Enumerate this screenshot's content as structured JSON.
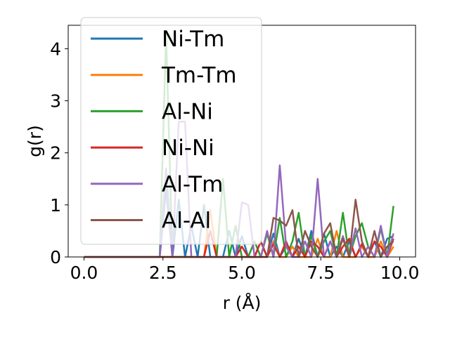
{
  "chart_data": {
    "type": "line",
    "title": "",
    "xlabel": "r (Å)",
    "ylabel": "g(r)",
    "xlim": [
      -0.5,
      10.5
    ],
    "ylim": [
      0,
      4.45
    ],
    "x_ticks": [
      "0.0",
      "2.5",
      "5.0",
      "7.5",
      "10.0"
    ],
    "y_ticks": [
      "0",
      "1",
      "2",
      "3",
      "4"
    ],
    "grid": false,
    "legend_position": "upper-left",
    "x": [
      0.0,
      0.2,
      0.4,
      0.6,
      0.8,
      1.0,
      1.2,
      1.4,
      1.6,
      1.8,
      2.0,
      2.2,
      2.4,
      2.6,
      2.8,
      3.0,
      3.2,
      3.4,
      3.6,
      3.8,
      4.0,
      4.2,
      4.4,
      4.6,
      4.8,
      5.0,
      5.2,
      5.4,
      5.6,
      5.8,
      6.0,
      6.2,
      6.4,
      6.6,
      6.8,
      7.0,
      7.2,
      7.4,
      7.6,
      7.8,
      8.0,
      8.2,
      8.4,
      8.6,
      8.8,
      9.0,
      9.2,
      9.4,
      9.6,
      9.8
    ],
    "series": [
      {
        "name": "Ni-Tm",
        "color": "#1f77b4",
        "values": [
          0,
          0,
          0,
          0,
          0,
          0,
          0,
          0,
          0,
          0,
          0,
          0,
          0,
          1.3,
          0,
          1.1,
          0,
          0.6,
          0,
          1.0,
          0,
          0,
          0,
          0.5,
          0,
          0.4,
          0,
          0,
          0.3,
          0,
          0.45,
          0,
          0.2,
          0,
          0.35,
          0,
          0.5,
          0,
          0.45,
          0,
          0.2,
          0,
          0.3,
          0,
          0.25,
          0,
          0.3,
          0,
          0.35,
          0.4
        ]
      },
      {
        "name": "Tm-Tm",
        "color": "#ff7f0e",
        "values": [
          0,
          0,
          0,
          0,
          0,
          0,
          0,
          0,
          0,
          0,
          0,
          0,
          0,
          0,
          0,
          0,
          0,
          0,
          0,
          0,
          0.9,
          0,
          0,
          0,
          0,
          0,
          0,
          0,
          0,
          0,
          0.3,
          0,
          0,
          0.2,
          0,
          0,
          0,
          0.35,
          0,
          0,
          0.5,
          0,
          0,
          0,
          0.2,
          0,
          0,
          0.3,
          0,
          0.2
        ]
      },
      {
        "name": "Al-Ni",
        "color": "#2ca02c",
        "values": [
          0,
          0,
          0,
          0,
          0,
          0,
          0,
          0,
          0,
          0,
          0,
          0,
          0,
          4.3,
          0,
          0,
          0,
          0,
          0,
          0,
          0,
          0,
          1.5,
          0,
          0.6,
          0,
          0,
          0.3,
          0,
          0.45,
          0,
          0.75,
          0,
          0.3,
          0.85,
          0,
          0.4,
          0,
          0.3,
          0.5,
          0,
          0.85,
          0,
          0.4,
          0.65,
          0.2,
          0,
          0.55,
          0,
          0.98
        ]
      },
      {
        "name": "Ni-Ni",
        "color": "#d62728",
        "values": [
          0,
          0,
          0,
          0,
          0,
          0,
          0,
          0,
          0,
          0,
          0,
          0,
          0,
          0,
          0,
          0,
          0,
          0,
          0,
          0,
          0.5,
          0,
          0,
          0,
          0,
          0.2,
          0,
          0,
          0.3,
          0,
          0.25,
          0,
          0.3,
          0,
          0.2,
          0,
          0.3,
          0.2,
          0,
          0.3,
          0,
          0.2,
          0.35,
          0,
          0.25,
          0,
          0.3,
          0.2,
          0,
          0.35
        ]
      },
      {
        "name": "Al-Tm",
        "color": "#9467bd",
        "values": [
          0,
          0,
          0,
          0,
          0,
          0,
          0,
          0,
          0,
          0,
          0,
          0,
          0,
          1.7,
          0,
          2.6,
          2.6,
          0,
          0,
          0,
          0,
          0,
          0,
          0,
          0,
          1.05,
          1.0,
          0,
          0,
          0.5,
          0,
          1.76,
          0.2,
          0,
          0,
          0.3,
          0,
          1.5,
          0,
          0.3,
          0,
          0.4,
          0,
          0.55,
          0,
          0.2,
          0,
          0.6,
          0,
          0.45
        ]
      },
      {
        "name": "Al-Al",
        "color": "#8c564b",
        "values": [
          0,
          0,
          0,
          0,
          0,
          0,
          0,
          0,
          0,
          0,
          0,
          0,
          0,
          0,
          0,
          0,
          0,
          0,
          0,
          0,
          0,
          0,
          0,
          0,
          0,
          0,
          0,
          0,
          0,
          0,
          0.75,
          0.7,
          0.6,
          0.9,
          0,
          0.5,
          0.2,
          0,
          0.45,
          0.65,
          0,
          0.35,
          0,
          1.1,
          0.3,
          0,
          0.5,
          0,
          0.2,
          0.3
        ]
      }
    ]
  }
}
